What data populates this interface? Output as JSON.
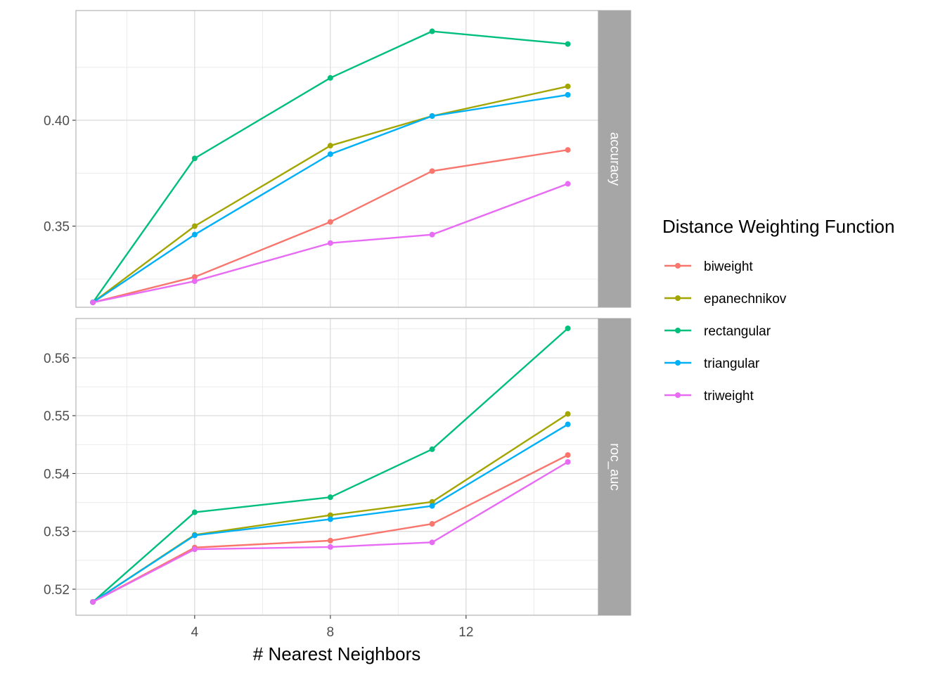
{
  "chart_data": {
    "type": "line",
    "xlabel": "# Nearest Neighbors",
    "x": [
      1,
      4,
      8,
      11,
      15
    ],
    "x_ticks": [
      "4",
      "8",
      "12"
    ],
    "xlim": [
      0.5,
      15.9
    ],
    "legend": {
      "title": "Distance Weighting Function",
      "placement": "right"
    },
    "series_styles": [
      {
        "name": "biweight",
        "color": "#F8766D"
      },
      {
        "name": "epanechnikov",
        "color": "#A3A500"
      },
      {
        "name": "rectangular",
        "color": "#00BF7D"
      },
      {
        "name": "triangular",
        "color": "#00B0F6"
      },
      {
        "name": "triweight",
        "color": "#E76BF3"
      }
    ],
    "panels": [
      {
        "strip": "accuracy",
        "ylim": [
          0.3117,
          0.4518
        ],
        "y_ticks": [
          "0.35",
          "0.40"
        ],
        "grid": true,
        "series": [
          {
            "name": "biweight",
            "values": [
              0.314,
              0.326,
              0.352,
              0.376,
              0.386
            ]
          },
          {
            "name": "epanechnikov",
            "values": [
              0.314,
              0.35,
              0.388,
              0.402,
              0.416
            ]
          },
          {
            "name": "rectangular",
            "values": [
              0.314,
              0.382,
              0.42,
              0.442,
              0.436
            ]
          },
          {
            "name": "triangular",
            "values": [
              0.314,
              0.346,
              0.384,
              0.402,
              0.412
            ]
          },
          {
            "name": "triweight",
            "values": [
              0.314,
              0.324,
              0.342,
              0.346,
              0.37
            ]
          }
        ]
      },
      {
        "strip": "roc_auc",
        "ylim": [
          0.5155,
          0.5668
        ],
        "y_ticks": [
          "0.52",
          "0.53",
          "0.54",
          "0.55",
          "0.56"
        ],
        "grid": true,
        "series": [
          {
            "name": "biweight",
            "values": [
              0.5178,
              0.5272,
              0.5284,
              0.5313,
              0.5432
            ]
          },
          {
            "name": "epanechnikov",
            "values": [
              0.5178,
              0.5294,
              0.5328,
              0.5351,
              0.5503
            ]
          },
          {
            "name": "rectangular",
            "values": [
              0.5178,
              0.5333,
              0.5359,
              0.5442,
              0.5651
            ]
          },
          {
            "name": "triangular",
            "values": [
              0.5178,
              0.5293,
              0.5321,
              0.5344,
              0.5485
            ]
          },
          {
            "name": "triweight",
            "values": [
              0.5178,
              0.5269,
              0.5273,
              0.5281,
              0.542
            ]
          }
        ]
      }
    ]
  }
}
